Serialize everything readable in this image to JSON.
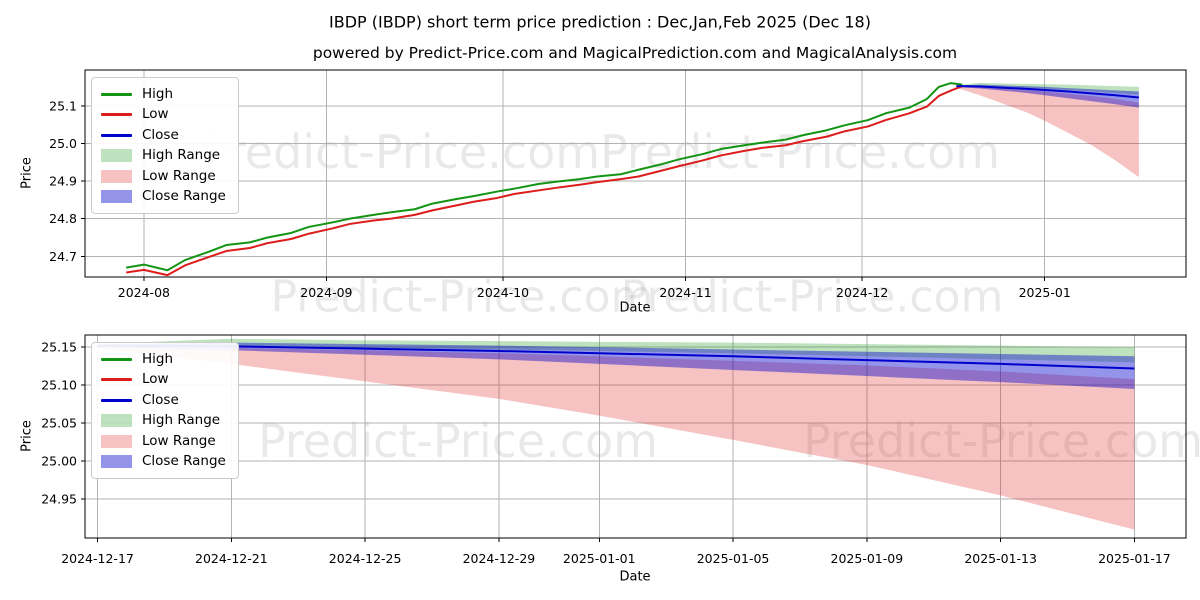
{
  "header": {
    "title": "IBDP (IBDP) short term price prediction : Dec,Jan,Feb 2025 (Dec 18)",
    "subtitle": "powered by Predict-Price.com and MagicalPrediction.com and MagicalAnalysis.com"
  },
  "watermark": {
    "text": "Predict-Price.com"
  },
  "colors": {
    "high": "#149414",
    "low": "#dd1c1c",
    "close": "#0000cd",
    "high_range": "rgba(20,148,20,0.28)",
    "low_range": "rgba(221,28,28,0.27)",
    "close_range": "rgba(0,0,205,0.42)",
    "grid": "#b3b3b3",
    "spine": "#000000"
  },
  "legend": {
    "entries": [
      {
        "label": "High",
        "swatch": "line",
        "color": "#149414"
      },
      {
        "label": "Low",
        "swatch": "line",
        "color": "#dd1c1c"
      },
      {
        "label": "Close",
        "swatch": "line",
        "color": "#0000cd"
      },
      {
        "label": "High Range",
        "swatch": "patch",
        "color": "rgba(20,148,20,0.28)"
      },
      {
        "label": "Low Range",
        "swatch": "patch",
        "color": "rgba(221,28,28,0.27)"
      },
      {
        "label": "Close Range",
        "swatch": "patch",
        "color": "rgba(0,0,205,0.42)"
      }
    ]
  },
  "chart_data": [
    {
      "type": "line",
      "name": "price-history-with-prediction",
      "xlabel": "Date",
      "ylabel": "Price",
      "grid": true,
      "legend_position": "upper left",
      "xlim": [
        "2024-07-22",
        "2025-01-25"
      ],
      "ylim": [
        24.645,
        25.195
      ],
      "yticks": [
        {
          "value": 24.7,
          "label": "24.7"
        },
        {
          "value": 24.8,
          "label": "24.8"
        },
        {
          "value": 24.9,
          "label": "24.9"
        },
        {
          "value": 25.0,
          "label": "25.0"
        },
        {
          "value": 25.1,
          "label": "25.1"
        }
      ],
      "xticks": [
        {
          "date": "2024-08-01",
          "label": "2024-08"
        },
        {
          "date": "2024-09-01",
          "label": "2024-09"
        },
        {
          "date": "2024-10-01",
          "label": "2024-10"
        },
        {
          "date": "2024-11-01",
          "label": "2024-11"
        },
        {
          "date": "2024-12-01",
          "label": "2024-12"
        },
        {
          "date": "2025-01-01",
          "label": "2025-01"
        }
      ],
      "series": [
        {
          "name": "High",
          "color": "#149414",
          "dates": [
            "2024-07-29",
            "2024-08-01",
            "2024-08-05",
            "2024-08-08",
            "2024-08-12",
            "2024-08-15",
            "2024-08-19",
            "2024-08-22",
            "2024-08-26",
            "2024-08-29",
            "2024-09-02",
            "2024-09-05",
            "2024-09-09",
            "2024-09-12",
            "2024-09-16",
            "2024-09-19",
            "2024-09-23",
            "2024-09-26",
            "2024-09-30",
            "2024-10-03",
            "2024-10-07",
            "2024-10-10",
            "2024-10-14",
            "2024-10-17",
            "2024-10-21",
            "2024-10-24",
            "2024-10-28",
            "2024-10-31",
            "2024-11-04",
            "2024-11-07",
            "2024-11-11",
            "2024-11-14",
            "2024-11-18",
            "2024-11-21",
            "2024-11-25",
            "2024-11-28",
            "2024-12-02",
            "2024-12-05",
            "2024-12-09",
            "2024-12-12",
            "2024-12-14",
            "2024-12-16",
            "2024-12-18"
          ],
          "values": [
            24.67,
            24.678,
            24.663,
            24.69,
            24.712,
            24.73,
            24.737,
            24.75,
            24.762,
            24.778,
            24.79,
            24.8,
            24.81,
            24.817,
            24.825,
            24.84,
            24.852,
            24.86,
            24.872,
            24.88,
            24.892,
            24.898,
            24.905,
            24.912,
            24.918,
            24.93,
            24.945,
            24.958,
            24.972,
            24.985,
            24.995,
            25.002,
            25.01,
            25.022,
            25.035,
            25.048,
            25.062,
            25.08,
            25.095,
            25.118,
            25.15,
            25.16,
            25.156
          ]
        },
        {
          "name": "Low",
          "color": "#dd1c1c",
          "dates": [
            "2024-07-29",
            "2024-08-01",
            "2024-08-05",
            "2024-08-08",
            "2024-08-12",
            "2024-08-15",
            "2024-08-19",
            "2024-08-22",
            "2024-08-26",
            "2024-08-29",
            "2024-09-02",
            "2024-09-05",
            "2024-09-09",
            "2024-09-12",
            "2024-09-16",
            "2024-09-19",
            "2024-09-23",
            "2024-09-26",
            "2024-09-30",
            "2024-10-03",
            "2024-10-07",
            "2024-10-10",
            "2024-10-14",
            "2024-10-17",
            "2024-10-21",
            "2024-10-24",
            "2024-10-28",
            "2024-10-31",
            "2024-11-04",
            "2024-11-07",
            "2024-11-11",
            "2024-11-14",
            "2024-11-18",
            "2024-11-21",
            "2024-11-25",
            "2024-11-28",
            "2024-12-02",
            "2024-12-05",
            "2024-12-09",
            "2024-12-12",
            "2024-12-14",
            "2024-12-16",
            "2024-12-18"
          ],
          "values": [
            24.657,
            24.664,
            24.65,
            24.676,
            24.698,
            24.714,
            24.722,
            24.735,
            24.746,
            24.76,
            24.774,
            24.786,
            24.795,
            24.8,
            24.81,
            24.822,
            24.835,
            24.845,
            24.855,
            24.866,
            24.875,
            24.882,
            24.89,
            24.897,
            24.905,
            24.912,
            24.928,
            24.94,
            24.955,
            24.968,
            24.98,
            24.988,
            24.995,
            25.006,
            25.018,
            25.032,
            25.045,
            25.062,
            25.08,
            25.098,
            25.126,
            25.14,
            25.152
          ]
        },
        {
          "name": "Close",
          "color": "#0000cd",
          "dates": [
            "2024-12-17",
            "2024-12-18",
            "2024-12-21",
            "2024-12-25",
            "2024-12-29",
            "2025-01-01",
            "2025-01-05",
            "2025-01-09",
            "2025-01-13",
            "2025-01-17"
          ],
          "values": [
            25.152,
            25.152,
            25.151,
            25.148,
            25.145,
            25.142,
            25.138,
            25.133,
            25.128,
            25.122
          ]
        }
      ],
      "bands": [
        {
          "name": "High Range",
          "color": "rgba(20,148,20,0.28)",
          "dates": [
            "2024-12-17",
            "2024-12-18",
            "2024-12-21",
            "2024-12-25",
            "2024-12-29",
            "2025-01-01",
            "2025-01-05",
            "2025-01-09",
            "2025-01-13",
            "2025-01-17"
          ],
          "upper": [
            25.153,
            25.156,
            25.161,
            25.159,
            25.158,
            25.157,
            25.156,
            25.154,
            25.152,
            25.15
          ],
          "lower": [
            25.15,
            25.15,
            25.151,
            25.149,
            25.147,
            25.145,
            25.142,
            25.138,
            25.134,
            25.13
          ]
        },
        {
          "name": "Low Range",
          "color": "rgba(221,28,28,0.27)",
          "dates": [
            "2024-12-17",
            "2024-12-18",
            "2024-12-21",
            "2024-12-25",
            "2024-12-29",
            "2025-01-01",
            "2025-01-05",
            "2025-01-09",
            "2025-01-13",
            "2025-01-17"
          ],
          "upper": [
            25.151,
            25.15,
            25.149,
            25.146,
            25.142,
            25.138,
            25.132,
            25.126,
            25.118,
            25.108
          ],
          "lower": [
            25.148,
            25.143,
            25.128,
            25.105,
            25.082,
            25.06,
            25.028,
            24.995,
            24.955,
            24.91
          ]
        },
        {
          "name": "Close Range",
          "color": "rgba(0,0,205,0.42)",
          "dates": [
            "2024-12-17",
            "2024-12-18",
            "2024-12-21",
            "2024-12-25",
            "2024-12-29",
            "2025-01-01",
            "2025-01-05",
            "2025-01-09",
            "2025-01-13",
            "2025-01-17"
          ],
          "upper": [
            25.153,
            25.154,
            25.156,
            25.154,
            25.152,
            25.15,
            25.147,
            25.144,
            25.141,
            25.138
          ],
          "lower": [
            25.15,
            25.149,
            25.146,
            25.14,
            25.134,
            25.128,
            25.12,
            25.112,
            25.104,
            25.095
          ]
        }
      ]
    },
    {
      "type": "line",
      "name": "prediction-detail",
      "xlabel": "Date",
      "ylabel": "Price",
      "grid": true,
      "legend_position": "upper left",
      "xlim": [
        "2024-12-16T15",
        "2025-01-18T13"
      ],
      "ylim": [
        24.899,
        25.166
      ],
      "yticks": [
        {
          "value": 24.95,
          "label": "24.95"
        },
        {
          "value": 25.0,
          "label": "25.00"
        },
        {
          "value": 25.05,
          "label": "25.05"
        },
        {
          "value": 25.1,
          "label": "25.10"
        },
        {
          "value": 25.15,
          "label": "25.15"
        }
      ],
      "xticks": [
        {
          "date": "2024-12-17",
          "label": "2024-12-17"
        },
        {
          "date": "2024-12-21",
          "label": "2024-12-21"
        },
        {
          "date": "2024-12-25",
          "label": "2024-12-25"
        },
        {
          "date": "2024-12-29",
          "label": "2024-12-29"
        },
        {
          "date": "2025-01-01",
          "label": "2025-01-01"
        },
        {
          "date": "2025-01-05",
          "label": "2025-01-05"
        },
        {
          "date": "2025-01-09",
          "label": "2025-01-09"
        },
        {
          "date": "2025-01-13",
          "label": "2025-01-13"
        },
        {
          "date": "2025-01-17",
          "label": "2025-01-17"
        }
      ],
      "series": [
        {
          "name": "Close",
          "color": "#0000cd",
          "dates": [
            "2024-12-17",
            "2024-12-18",
            "2024-12-21",
            "2024-12-25",
            "2024-12-29",
            "2025-01-01",
            "2025-01-05",
            "2025-01-09",
            "2025-01-13",
            "2025-01-17"
          ],
          "values": [
            25.152,
            25.152,
            25.151,
            25.148,
            25.145,
            25.142,
            25.138,
            25.133,
            25.128,
            25.122
          ]
        }
      ],
      "bands": [
        {
          "name": "High Range",
          "color": "rgba(20,148,20,0.28)",
          "dates": [
            "2024-12-17",
            "2024-12-18",
            "2024-12-21",
            "2024-12-25",
            "2024-12-29",
            "2025-01-01",
            "2025-01-05",
            "2025-01-09",
            "2025-01-13",
            "2025-01-17"
          ],
          "upper": [
            25.153,
            25.156,
            25.161,
            25.159,
            25.158,
            25.157,
            25.156,
            25.154,
            25.152,
            25.15
          ],
          "lower": [
            25.15,
            25.15,
            25.151,
            25.149,
            25.147,
            25.145,
            25.142,
            25.138,
            25.134,
            25.13
          ]
        },
        {
          "name": "Low Range",
          "color": "rgba(221,28,28,0.27)",
          "dates": [
            "2024-12-17",
            "2024-12-18",
            "2024-12-21",
            "2024-12-25",
            "2024-12-29",
            "2025-01-01",
            "2025-01-05",
            "2025-01-09",
            "2025-01-13",
            "2025-01-17"
          ],
          "upper": [
            25.151,
            25.15,
            25.149,
            25.146,
            25.142,
            25.138,
            25.132,
            25.126,
            25.118,
            25.108
          ],
          "lower": [
            25.148,
            25.143,
            25.128,
            25.105,
            25.082,
            25.06,
            25.028,
            24.995,
            24.955,
            24.91
          ]
        },
        {
          "name": "Close Range",
          "color": "rgba(0,0,205,0.42)",
          "dates": [
            "2024-12-17",
            "2024-12-18",
            "2024-12-21",
            "2024-12-25",
            "2024-12-29",
            "2025-01-01",
            "2025-01-05",
            "2025-01-09",
            "2025-01-13",
            "2025-01-17"
          ],
          "upper": [
            25.153,
            25.154,
            25.156,
            25.154,
            25.152,
            25.15,
            25.147,
            25.144,
            25.141,
            25.138
          ],
          "lower": [
            25.15,
            25.149,
            25.146,
            25.14,
            25.134,
            25.128,
            25.12,
            25.112,
            25.104,
            25.095
          ]
        }
      ]
    }
  ]
}
